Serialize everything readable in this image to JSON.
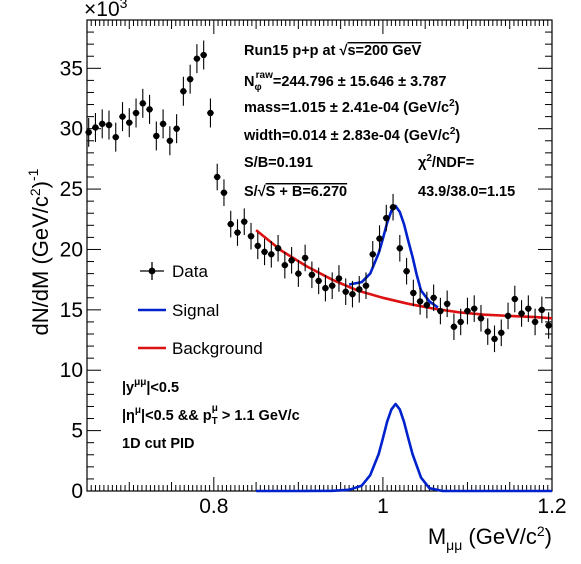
{
  "chart_data": {
    "type": "scatter",
    "title": "",
    "xlabel": "M",
    "xlabel_sub": "μμ",
    "xlabel_unit": " (GeV/c",
    "xlabel_unit_sup": "2",
    "xlabel_close": ")",
    "ylabel": "dN/dM (GeV/c",
    "ylabel_sup": "2",
    "ylabel_close": ")",
    "ylabel_exp": "-1",
    "y_multiplier": "×10",
    "y_multiplier_exp": "3",
    "xlim": [
      0.65,
      1.2
    ],
    "ylim": [
      0,
      39
    ],
    "xticks": [
      0.8,
      1,
      1.2
    ],
    "xtick_labels": [
      "0.8",
      "1",
      "1.2"
    ],
    "yticks": [
      0,
      5,
      10,
      15,
      20,
      25,
      30,
      35
    ],
    "ytick_labels": [
      "0",
      "5",
      "10",
      "15",
      "20",
      "25",
      "30",
      "35"
    ],
    "grid": false,
    "legend_position": "left-middle",
    "series": [
      {
        "name": "Data",
        "kind": "points_with_errors",
        "color": "#000000",
        "x": [
          0.652,
          0.66,
          0.668,
          0.676,
          0.684,
          0.692,
          0.7,
          0.708,
          0.716,
          0.724,
          0.732,
          0.74,
          0.748,
          0.756,
          0.764,
          0.772,
          0.78,
          0.788,
          0.796,
          0.804,
          0.812,
          0.82,
          0.828,
          0.836,
          0.844,
          0.852,
          0.86,
          0.868,
          0.876,
          0.884,
          0.892,
          0.9,
          0.908,
          0.916,
          0.924,
          0.932,
          0.94,
          0.948,
          0.956,
          0.964,
          0.972,
          0.98,
          0.988,
          0.996,
          1.004,
          1.012,
          1.02,
          1.028,
          1.036,
          1.044,
          1.052,
          1.06,
          1.068,
          1.076,
          1.084,
          1.092,
          1.1,
          1.108,
          1.116,
          1.124,
          1.132,
          1.14,
          1.148,
          1.156,
          1.164,
          1.172,
          1.18,
          1.188,
          1.196
        ],
        "y": [
          29.7,
          30.1,
          30.4,
          30.3,
          29.3,
          31.0,
          30.5,
          31.3,
          32.1,
          31.6,
          29.4,
          30.4,
          29.0,
          30.0,
          33.1,
          34.1,
          35.8,
          36.1,
          31.3,
          26.0,
          24.7,
          22.1,
          21.4,
          22.3,
          21.1,
          20.3,
          19.8,
          19.6,
          20.1,
          18.7,
          19.1,
          18.0,
          19.3,
          17.9,
          17.4,
          16.8,
          17.0,
          17.6,
          16.5,
          16.3,
          16.7,
          17.0,
          19.6,
          20.9,
          22.6,
          23.5,
          20.1,
          18.2,
          16.4,
          15.7,
          15.4,
          16.0,
          14.9,
          15.5,
          13.6,
          14.0,
          14.9,
          15.1,
          14.3,
          13.2,
          12.6,
          13.1,
          14.5,
          15.9,
          14.7,
          15.1,
          14.0,
          15.0,
          13.7
        ],
        "yerr": [
          1.2,
          1.2,
          1.2,
          1.2,
          1.2,
          1.2,
          1.2,
          1.2,
          1.2,
          1.2,
          1.2,
          1.2,
          1.2,
          1.2,
          1.2,
          1.2,
          1.2,
          1.2,
          1.2,
          1.1,
          1.1,
          1.1,
          1.1,
          1.1,
          1.1,
          1.1,
          1.1,
          1.1,
          1.1,
          1.1,
          1.1,
          1.1,
          1.1,
          1.1,
          1.1,
          1.1,
          1.1,
          1.1,
          1.1,
          1.1,
          1.1,
          1.1,
          1.1,
          1.1,
          1.1,
          1.1,
          1.1,
          1.1,
          1.1,
          1.1,
          1.1,
          1.1,
          1.1,
          1.1,
          1.1,
          1.1,
          1.1,
          1.1,
          1.1,
          1.1,
          1.1,
          1.1,
          1.1,
          1.1,
          1.1,
          1.1,
          1.1,
          1.1,
          1.1
        ]
      },
      {
        "name": "Signal",
        "kind": "curve",
        "color": "#0022cc",
        "x": [
          0.85,
          0.9,
          0.94,
          0.96,
          0.975,
          0.985,
          0.995,
          1.0,
          1.005,
          1.01,
          1.015,
          1.02,
          1.025,
          1.03,
          1.035,
          1.045,
          1.055,
          1.07,
          1.1,
          1.2
        ],
        "y": [
          0,
          0,
          0.02,
          0.1,
          0.45,
          1.31,
          3.06,
          4.36,
          5.73,
          6.76,
          7.2,
          6.76,
          5.73,
          4.36,
          3.06,
          1.11,
          0.23,
          0.01,
          0,
          0
        ]
      },
      {
        "name": "Background",
        "kind": "curve",
        "color": "#dd1111",
        "x": [
          0.85,
          0.88,
          0.91,
          0.94,
          0.97,
          1.0,
          1.03,
          1.06,
          1.09,
          1.12,
          1.15,
          1.18,
          1.2
        ],
        "y": [
          21.6,
          19.9,
          18.6,
          17.5,
          16.6,
          16.0,
          15.5,
          15.1,
          14.8,
          14.6,
          14.5,
          14.4,
          14.3
        ]
      },
      {
        "name": "",
        "kind": "curve",
        "color": "#0022cc",
        "x": [
          0.96,
          0.975,
          0.985,
          0.995,
          1.0,
          1.005,
          1.01,
          1.015,
          1.02,
          1.025,
          1.03,
          1.035,
          1.04,
          1.045,
          1.055,
          1.065
        ],
        "y": [
          17.1,
          17.3,
          18.0,
          19.7,
          20.9,
          22.2,
          23.2,
          23.6,
          23.1,
          22.1,
          20.7,
          19.4,
          17.9,
          16.6,
          15.7,
          15.2
        ]
      }
    ]
  },
  "legend": {
    "entries": [
      {
        "label": "Data",
        "color": "#000000",
        "kind": "marker"
      },
      {
        "label": "Signal",
        "color": "#0022cc",
        "kind": "line"
      },
      {
        "label": "Background",
        "color": "#dd1111",
        "kind": "line"
      }
    ]
  },
  "stats": {
    "run_prefix": "Run15 p+p at  ",
    "run_sqrt": "√",
    "run_s": "s=200 GeV",
    "n_label": "N",
    "n_sub": "φ",
    "n_sup": "raw",
    "n_value": "=244.796 ± 15.646 ± 3.787",
    "mass": "mass=1.015 ± 2.41e-04 (GeV/c",
    "mass_sup": "2",
    "mass_close": ")",
    "width": "width=0.014 ± 2.83e-04 (GeV/c",
    "width_sup": "2",
    "width_close": ")",
    "sb": "S/B=0.191",
    "chi2_label": "χ",
    "chi2_sup": "2",
    "chi2_rest": "/NDF=",
    "chi2_value": "43.9/38.0=1.15",
    "significance_prefix": "S/",
    "significance_sqrt": "√",
    "significance_rest": "S + B=6.270"
  },
  "cuts": {
    "cut1_a": "|y",
    "cut1_sup": "μμ",
    "cut1_b": "|<0.5",
    "cut2_a": "|η",
    "cut2_sup": "μ",
    "cut2_b": "|<0.5 && p",
    "cut2_sub": "T",
    "cut2_sup2": "μ",
    "cut2_c": " > 1.1 GeV/c",
    "pid": "1D cut PID"
  }
}
